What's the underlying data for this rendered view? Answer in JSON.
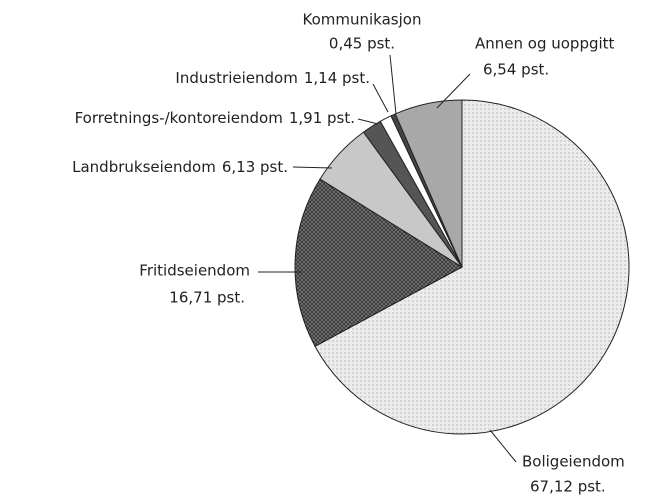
{
  "chart_data": {
    "type": "pie",
    "categories": [
      "Boligeiendom",
      "Fritidseiendom",
      "Landbrukseiendom",
      "Forretnings-/kontoreiendom",
      "Industrieiendom",
      "Kommunikasjon",
      "Annen og uoppgitt"
    ],
    "values": [
      67.12,
      16.71,
      6.13,
      1.91,
      1.14,
      0.45,
      6.54
    ],
    "value_labels": [
      "67,12 pst.",
      "16,71 pst.",
      "6,13 pst.",
      "1,91 pst.",
      "1,14 pst.",
      "0,45 pst.",
      "6,54 pst."
    ],
    "colors": [
      "#e6e6e6",
      "#6a6a6a",
      "#c8c8c8",
      "#555555",
      "#ffffff",
      "#444444",
      "#a8a8a8"
    ]
  }
}
